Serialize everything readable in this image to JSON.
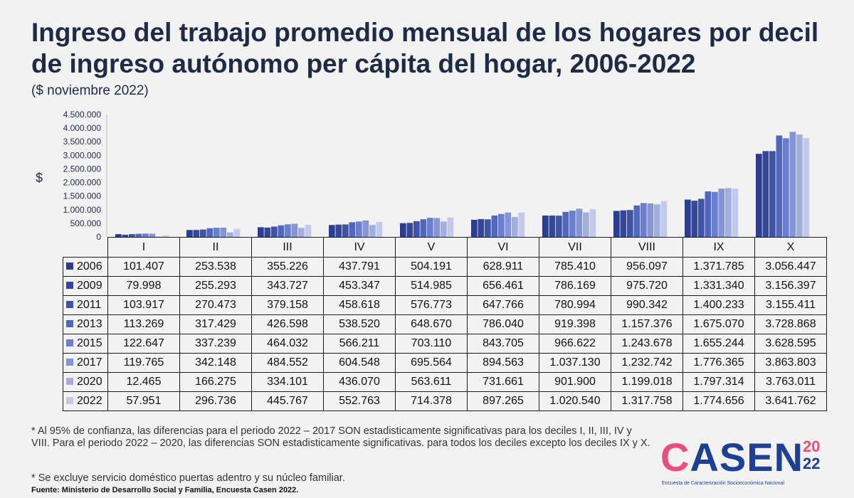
{
  "title": "Ingreso del trabajo promedio mensual de los hogares por decil de ingreso autónomo per cápita del hogar, 2006-2022",
  "subtitle": "($ noviembre 2022)",
  "notes": {
    "note1": "* Al 95% de confianza, las diferencias para el periodo 2022 – 2017 SON estadisticamente significativas para los deciles I, II, III, IV y VIII. Para el periodo 2022 – 2020, las diferencias SON estadisticamente significativas. para todos los deciles excepto los deciles IX y X.",
    "note2": "* Se excluye servicio doméstico puertas adentro y su núcleo familiar.",
    "source": "Fuente: Ministerio de Desarrollo Social y Familia, Encuesta Casen 2022."
  },
  "logo": {
    "word": "CASEN",
    "letter_c": "C",
    "letters_rest": "ASEN",
    "year_top": "20",
    "year_bottom": "22",
    "tagline": "Encuesta de Caracterización Socioeconómica Nacional"
  },
  "chart_data": {
    "type": "bar",
    "ylabel": "$",
    "ylim": [
      0,
      4500000
    ],
    "yticks": [
      "0",
      "500.000",
      "1.000.000",
      "1.500.000",
      "2.000.000",
      "2.500.000",
      "3.000.000",
      "3.500.000",
      "4.000.000",
      "4.500.000"
    ],
    "categories": [
      "I",
      "II",
      "III",
      "IV",
      "V",
      "VI",
      "VII",
      "VIII",
      "IX",
      "X"
    ],
    "series": [
      {
        "name": "2006",
        "color": "#2b3d8f",
        "values": [
          101407,
          253538,
          355226,
          437791,
          504191,
          628911,
          785410,
          956097,
          1371785,
          3056447
        ],
        "labels": [
          "101.407",
          "253.538",
          "355.226",
          "437.791",
          "504.191",
          "628.911",
          "785.410",
          "956.097",
          "1.371.785",
          "3.056.447"
        ]
      },
      {
        "name": "2009",
        "color": "#34479a",
        "values": [
          79998,
          255293,
          343727,
          453347,
          514985,
          656461,
          786169,
          975720,
          1331340,
          3156397
        ],
        "labels": [
          "79.998",
          "255.293",
          "343.727",
          "453.347",
          "514.985",
          "656.461",
          "786.169",
          "975.720",
          "1.331.340",
          "3.156.397"
        ]
      },
      {
        "name": "2011",
        "color": "#3f54a8",
        "values": [
          103917,
          270473,
          379158,
          458618,
          576773,
          647766,
          780994,
          990342,
          1400233,
          3155411
        ],
        "labels": [
          "103.917",
          "270.473",
          "379.158",
          "458.618",
          "576.773",
          "647.766",
          "780.994",
          "990.342",
          "1.400.233",
          "3.155.411"
        ]
      },
      {
        "name": "2013",
        "color": "#5266bb",
        "values": [
          113269,
          317429,
          426598,
          538520,
          648670,
          786040,
          919398,
          1157376,
          1675070,
          3728868
        ],
        "labels": [
          "113.269",
          "317.429",
          "426.598",
          "538.520",
          "648.670",
          "786.040",
          "919.398",
          "1.157.376",
          "1.675.070",
          "3.728.868"
        ]
      },
      {
        "name": "2015",
        "color": "#6a7ecb",
        "values": [
          122647,
          337239,
          464032,
          566211,
          703110,
          843705,
          966622,
          1243678,
          1655244,
          3628595
        ],
        "labels": [
          "122.647",
          "337.239",
          "464.032",
          "566.211",
          "703.110",
          "843.705",
          "966.622",
          "1.243.678",
          "1.655.244",
          "3.628.595"
        ]
      },
      {
        "name": "2017",
        "color": "#8594d6",
        "values": [
          119765,
          342148,
          484552,
          604548,
          695564,
          894563,
          1037130,
          1232742,
          1776365,
          3863803
        ],
        "labels": [
          "119.765",
          "342.148",
          "484.552",
          "604.548",
          "695.564",
          "894.563",
          "1.037.130",
          "1.232.742",
          "1.776.365",
          "3.863.803"
        ]
      },
      {
        "name": "2020",
        "color": "#a3aee0",
        "values": [
          12465,
          166275,
          334101,
          436070,
          563611,
          731661,
          901900,
          1199018,
          1797314,
          3763011
        ],
        "labels": [
          "12.465",
          "166.275",
          "334.101",
          "436.070",
          "563.611",
          "731.661",
          "901.900",
          "1.199.018",
          "1.797.314",
          "3.763.011"
        ]
      },
      {
        "name": "2022",
        "color": "#c3c9ea",
        "values": [
          57951,
          296736,
          445767,
          552763,
          714378,
          897265,
          1020540,
          1317758,
          1774656,
          3641762
        ],
        "labels": [
          "57.951",
          "296.736",
          "445.767",
          "552.763",
          "714.378",
          "897.265",
          "1.020.540",
          "1.317.758",
          "1.774.656",
          "3.641.762"
        ]
      }
    ]
  }
}
